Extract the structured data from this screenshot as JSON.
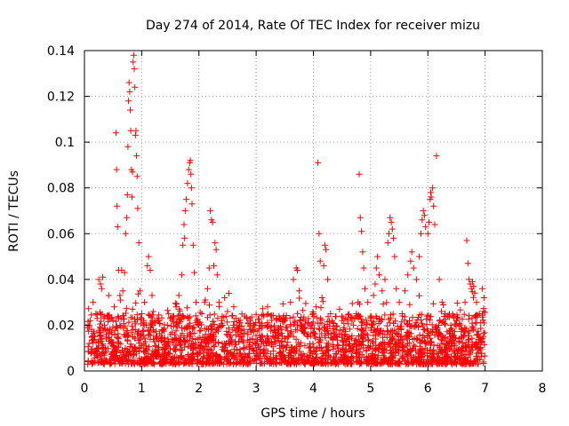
{
  "chart_data": {
    "type": "scatter",
    "title": "Day 274 of 2014, Rate Of TEC Index for receiver mizu",
    "xlabel": "GPS time / hours",
    "ylabel": "ROTI / TECUs",
    "xlim": [
      0,
      8
    ],
    "ylim": [
      0,
      0.14
    ],
    "x_ticks": [
      0,
      1,
      2,
      3,
      4,
      5,
      6,
      7,
      8
    ],
    "x_tick_labels": [
      "0",
      "1",
      "2",
      "3",
      "4",
      "5",
      "6",
      "7",
      "8"
    ],
    "y_ticks": [
      0,
      0.02,
      0.04,
      0.06,
      0.08,
      0.1,
      0.12,
      0.14
    ],
    "y_tick_labels": [
      "0",
      "0.02",
      "0.04",
      "0.06",
      "0.08",
      "0.1",
      "0.12",
      "0.14"
    ],
    "grid": true,
    "marker": "+",
    "color": "#ff0000",
    "series": [
      {
        "name": "ROTI",
        "points": [
          [
            0.08,
            0.012
          ],
          [
            0.1,
            0.022
          ],
          [
            0.12,
            0.008
          ],
          [
            0.15,
            0.03
          ],
          [
            0.18,
            0.015
          ],
          [
            0.2,
            0.025
          ],
          [
            0.22,
            0.01
          ],
          [
            0.25,
            0.04
          ],
          [
            0.28,
            0.038
          ],
          [
            0.3,
            0.036
          ],
          [
            0.32,
            0.041
          ],
          [
            0.35,
            0.02
          ],
          [
            0.38,
            0.014
          ],
          [
            0.4,
            0.018
          ],
          [
            0.42,
            0.024
          ],
          [
            0.45,
            0.012
          ],
          [
            0.48,
            0.016
          ],
          [
            0.5,
            0.022
          ],
          [
            0.52,
            0.028
          ],
          [
            0.55,
            0.104
          ],
          [
            0.56,
            0.088
          ],
          [
            0.57,
            0.072
          ],
          [
            0.58,
            0.063
          ],
          [
            0.6,
            0.044
          ],
          [
            0.62,
            0.033
          ],
          [
            0.63,
            0.031
          ],
          [
            0.65,
            0.044
          ],
          [
            0.67,
            0.035
          ],
          [
            0.7,
            0.043
          ],
          [
            0.72,
            0.06
          ],
          [
            0.74,
            0.067
          ],
          [
            0.75,
            0.077
          ],
          [
            0.76,
            0.098
          ],
          [
            0.77,
            0.118
          ],
          [
            0.78,
            0.126
          ],
          [
            0.79,
            0.122
          ],
          [
            0.8,
            0.114
          ],
          [
            0.81,
            0.105
          ],
          [
            0.82,
            0.088
          ],
          [
            0.83,
            0.076
          ],
          [
            0.84,
            0.087
          ],
          [
            0.85,
            0.135
          ],
          [
            0.86,
            0.138
          ],
          [
            0.87,
            0.132
          ],
          [
            0.88,
            0.124
          ],
          [
            0.89,
            0.103
          ],
          [
            0.9,
            0.105
          ],
          [
            0.91,
            0.094
          ],
          [
            0.92,
            0.085
          ],
          [
            0.93,
            0.071
          ],
          [
            0.95,
            0.056
          ],
          [
            0.97,
            0.035
          ],
          [
            1.0,
            0.025
          ],
          [
            1.05,
            0.03
          ],
          [
            1.08,
            0.02
          ],
          [
            1.1,
            0.046
          ],
          [
            1.12,
            0.05
          ],
          [
            1.15,
            0.044
          ],
          [
            1.18,
            0.033
          ],
          [
            1.2,
            0.026
          ],
          [
            1.25,
            0.015
          ],
          [
            1.3,
            0.022
          ],
          [
            1.35,
            0.018
          ],
          [
            1.4,
            0.012
          ],
          [
            1.45,
            0.02
          ],
          [
            1.5,
            0.016
          ],
          [
            1.55,
            0.024
          ],
          [
            1.6,
            0.028
          ],
          [
            1.65,
            0.033
          ],
          [
            1.7,
            0.042
          ],
          [
            1.72,
            0.055
          ],
          [
            1.74,
            0.064
          ],
          [
            1.75,
            0.058
          ],
          [
            1.76,
            0.07
          ],
          [
            1.78,
            0.075
          ],
          [
            1.8,
            0.082
          ],
          [
            1.82,
            0.088
          ],
          [
            1.84,
            0.091
          ],
          [
            1.85,
            0.092
          ],
          [
            1.86,
            0.086
          ],
          [
            1.87,
            0.08
          ],
          [
            1.88,
            0.073
          ],
          [
            1.9,
            0.055
          ],
          [
            1.92,
            0.043
          ],
          [
            1.95,
            0.03
          ],
          [
            2.0,
            0.02
          ],
          [
            2.05,
            0.025
          ],
          [
            2.1,
            0.03
          ],
          [
            2.15,
            0.036
          ],
          [
            2.18,
            0.045
          ],
          [
            2.2,
            0.07
          ],
          [
            2.22,
            0.066
          ],
          [
            2.24,
            0.065
          ],
          [
            2.26,
            0.046
          ],
          [
            2.28,
            0.056
          ],
          [
            2.3,
            0.053
          ],
          [
            2.32,
            0.042
          ],
          [
            2.35,
            0.03
          ],
          [
            2.4,
            0.022
          ],
          [
            2.45,
            0.032
          ],
          [
            2.5,
            0.026
          ],
          [
            2.6,
            0.02
          ],
          [
            2.7,
            0.015
          ],
          [
            2.8,
            0.024
          ],
          [
            2.9,
            0.018
          ],
          [
            3.0,
            0.012
          ],
          [
            3.1,
            0.02
          ],
          [
            3.2,
            0.028
          ],
          [
            3.3,
            0.015
          ],
          [
            3.4,
            0.018
          ],
          [
            3.5,
            0.022
          ],
          [
            3.6,
            0.03
          ],
          [
            3.65,
            0.04
          ],
          [
            3.7,
            0.045
          ],
          [
            3.72,
            0.044
          ],
          [
            3.75,
            0.035
          ],
          [
            3.8,
            0.02
          ],
          [
            3.9,
            0.015
          ],
          [
            4.0,
            0.025
          ],
          [
            4.05,
            0.028
          ],
          [
            4.08,
            0.091
          ],
          [
            4.1,
            0.06
          ],
          [
            4.12,
            0.048
          ],
          [
            4.15,
            0.032
          ],
          [
            4.18,
            0.046
          ],
          [
            4.2,
            0.055
          ],
          [
            4.22,
            0.053
          ],
          [
            4.25,
            0.04
          ],
          [
            4.3,
            0.025
          ],
          [
            4.4,
            0.018
          ],
          [
            4.5,
            0.022
          ],
          [
            4.6,
            0.015
          ],
          [
            4.7,
            0.02
          ],
          [
            4.75,
            0.025
          ],
          [
            4.78,
            0.03
          ],
          [
            4.8,
            0.086
          ],
          [
            4.82,
            0.067
          ],
          [
            4.84,
            0.061
          ],
          [
            4.86,
            0.052
          ],
          [
            4.88,
            0.045
          ],
          [
            4.9,
            0.036
          ],
          [
            4.95,
            0.03
          ],
          [
            5.0,
            0.024
          ],
          [
            5.05,
            0.033
          ],
          [
            5.08,
            0.038
          ],
          [
            5.1,
            0.045
          ],
          [
            5.12,
            0.05
          ],
          [
            5.15,
            0.042
          ],
          [
            5.2,
            0.035
          ],
          [
            5.25,
            0.04
          ],
          [
            5.3,
            0.056
          ],
          [
            5.32,
            0.06
          ],
          [
            5.34,
            0.067
          ],
          [
            5.36,
            0.065
          ],
          [
            5.38,
            0.062
          ],
          [
            5.4,
            0.058
          ],
          [
            5.42,
            0.05
          ],
          [
            5.45,
            0.036
          ],
          [
            5.5,
            0.03
          ],
          [
            5.55,
            0.025
          ],
          [
            5.6,
            0.035
          ],
          [
            5.65,
            0.042
          ],
          [
            5.7,
            0.048
          ],
          [
            5.72,
            0.052
          ],
          [
            5.75,
            0.045
          ],
          [
            5.8,
            0.04
          ],
          [
            5.85,
            0.05
          ],
          [
            5.88,
            0.06
          ],
          [
            5.9,
            0.066
          ],
          [
            5.92,
            0.07
          ],
          [
            5.94,
            0.068
          ],
          [
            5.96,
            0.063
          ],
          [
            6.0,
            0.06
          ],
          [
            6.02,
            0.065
          ],
          [
            6.04,
            0.075
          ],
          [
            6.05,
            0.078
          ],
          [
            6.06,
            0.076
          ],
          [
            6.08,
            0.08
          ],
          [
            6.1,
            0.072
          ],
          [
            6.12,
            0.064
          ],
          [
            6.15,
            0.094
          ],
          [
            6.2,
            0.04
          ],
          [
            6.25,
            0.03
          ],
          [
            6.3,
            0.025
          ],
          [
            6.4,
            0.02
          ],
          [
            6.5,
            0.022
          ],
          [
            6.6,
            0.018
          ],
          [
            6.65,
            0.03
          ],
          [
            6.68,
            0.057
          ],
          [
            6.7,
            0.047
          ],
          [
            6.72,
            0.04
          ],
          [
            6.74,
            0.038
          ],
          [
            6.76,
            0.036
          ],
          [
            6.78,
            0.039
          ],
          [
            6.8,
            0.037
          ],
          [
            6.82,
            0.034
          ],
          [
            6.85,
            0.03
          ],
          [
            6.9,
            0.025
          ],
          [
            6.95,
            0.036
          ],
          [
            6.98,
            0.032
          ]
        ]
      }
    ]
  }
}
